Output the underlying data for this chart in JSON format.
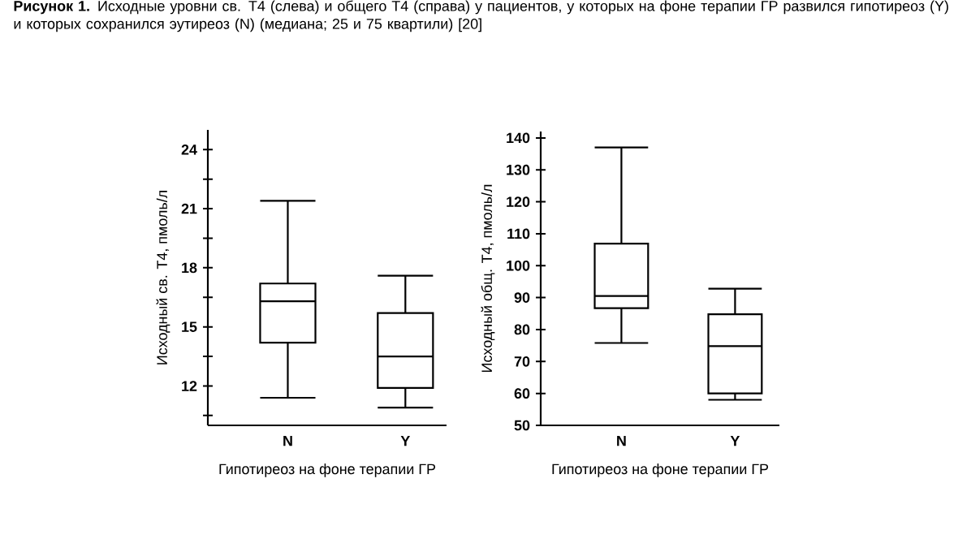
{
  "chart_data": [
    {
      "type": "box",
      "title": "**Рисунок 1.** Исходные уровни св. T4 (слева) и общего T4 (справа) у пациентов, у которых на фоне терапии ГР развился гипотиреоз (Y) и которых сохранился эутиреоз (N) (медиана; 25 и 75 квартили) [20]",
      "xlabel": "Гипотиреоз на фоне терапии ГР",
      "ylabel": "Исходный св. T4, пмоль/л",
      "categories": [
        "N",
        "Y"
      ],
      "color": "#000000",
      "boxes": [
        {
          "low": 11.4,
          "q1": 14.2,
          "median": 16.3,
          "q3": 17.2,
          "high": 21.4
        },
        {
          "low": 10.9,
          "q1": 11.9,
          "median": 13.5,
          "q3": 15.7,
          "high": 17.6
        }
      ],
      "ylim": [
        10,
        25
      ],
      "yticks": [
        {
          "value": 10.5,
          "label": null
        },
        12,
        {
          "value": 13.5,
          "label": null
        },
        15,
        {
          "value": 16.5,
          "label": null
        },
        18,
        {
          "value": 19.5,
          "label": null
        },
        21,
        {
          "value": 22.5,
          "label": null
        },
        24
      ]
    },
    {
      "type": "box",
      "xlabel": "Гипотиреоз на фоне терапии ГР",
      "ylabel": "Исходный общ. T4, пмоль/л",
      "categories": [
        "N",
        "Y"
      ],
      "color": "#000000",
      "boxes": [
        {
          "low": 75.8,
          "q1": 86.7,
          "median": 90.5,
          "q3": 106.9,
          "high": 137
        },
        {
          "low": 58,
          "q1": 60,
          "median": 74.8,
          "q3": 84.8,
          "high": 92.8
        }
      ],
      "ylim": [
        50,
        142
      ],
      "yticks": [
        50,
        60,
        70,
        80,
        90,
        100,
        110,
        120,
        130,
        140
      ]
    }
  ]
}
